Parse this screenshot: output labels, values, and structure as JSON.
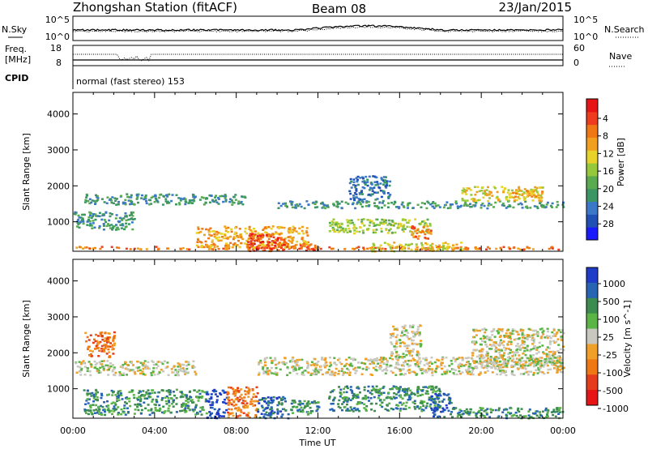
{
  "header": {
    "station": "Zhongshan Station (fitACF)",
    "beam": "Beam 08",
    "date": "23/Jan/2015"
  },
  "params": {
    "nsky_label": "N.Sky",
    "nsearch_label": "N.Search",
    "nsky_ticks": [
      "10^5",
      "10^0"
    ],
    "nsearch_ticks": [
      "10^5",
      "10^0"
    ],
    "freq_label_1": "Freq.",
    "freq_label_2": "[MHz]",
    "freq_ticks": [
      "18",
      "8"
    ],
    "nave_label": "Nave",
    "nave_ticks": [
      "60",
      "0"
    ],
    "cpid_label": "CPID",
    "cpid_text": "normal (fast stereo) 153"
  },
  "chart_data": [
    {
      "type": "heatmap",
      "title": "",
      "xlabel": "Time UT",
      "ylabel": "Slant Range [km]",
      "xticks": [
        "00:00",
        "04:00",
        "08:00",
        "12:00",
        "16:00",
        "20:00",
        "00:00"
      ],
      "yticks": [
        "1000",
        "2000",
        "3000",
        "4000"
      ],
      "ylim": [
        180,
        4600
      ],
      "colorbar": {
        "label": "Power [dB]",
        "ticks": [
          "4",
          "8",
          "12",
          "16",
          "20",
          "24",
          "28"
        ],
        "colors": [
          "#1a1aff",
          "#2050b4",
          "#3c78c8",
          "#3c9664",
          "#5aaa50",
          "#96c83c",
          "#e6d228",
          "#f0a01e",
          "#f07814",
          "#f03c1e",
          "#e61414"
        ]
      },
      "bands": [
        {
          "t0": 0.0,
          "t1": 24.0,
          "r0": 250,
          "r1": 330,
          "level": 8
        },
        {
          "t0": 0.5,
          "t1": 8.5,
          "r0": 1500,
          "r1": 1800,
          "level": 3
        },
        {
          "t0": 6.0,
          "t1": 11.5,
          "r0": 300,
          "r1": 900,
          "level": 7
        },
        {
          "t0": 8.5,
          "t1": 10.5,
          "r0": 200,
          "r1": 700,
          "level": 9
        },
        {
          "t0": 11.0,
          "t1": 12.0,
          "r0": 200,
          "r1": 400,
          "level": 9
        },
        {
          "t0": 10.0,
          "t1": 24.0,
          "r0": 1400,
          "r1": 1600,
          "level": 3
        },
        {
          "t0": 12.5,
          "t1": 17.5,
          "r0": 700,
          "r1": 1100,
          "level": 5
        },
        {
          "t0": 14.5,
          "t1": 19.0,
          "r0": 200,
          "r1": 450,
          "level": 6
        },
        {
          "t0": 16.5,
          "t1": 17.5,
          "r0": 550,
          "r1": 900,
          "level": 8
        },
        {
          "t0": 19.0,
          "t1": 23.0,
          "r0": 1600,
          "r1": 2000,
          "level": 6
        },
        {
          "t0": 21.0,
          "t1": 23.0,
          "r0": 1700,
          "r1": 1900,
          "level": 7
        },
        {
          "t0": 13.5,
          "t1": 15.5,
          "r0": 1600,
          "r1": 2300,
          "level": 2
        },
        {
          "t0": 0.0,
          "t1": 3.0,
          "r0": 800,
          "r1": 1300,
          "level": 3
        }
      ]
    },
    {
      "type": "heatmap",
      "title": "",
      "xlabel": "Time UT",
      "ylabel": "Slant Range [km]",
      "xticks": [
        "00:00",
        "04:00",
        "08:00",
        "12:00",
        "16:00",
        "20:00",
        "00:00"
      ],
      "yticks": [
        "1000",
        "2000",
        "3000",
        "4000"
      ],
      "ylim": [
        180,
        4600
      ],
      "colorbar": {
        "label": "Velocity [m s^-1]",
        "ticks": [
          "1000",
          "500",
          "100",
          "25",
          "-25",
          "-100",
          "-500",
          "-1000"
        ],
        "colors": [
          "#1e3cc8",
          "#2864b4",
          "#3c8c50",
          "#5ab446",
          "#c8c8c0",
          "#f0a028",
          "#f07814",
          "#e63c1e",
          "#e61414"
        ]
      },
      "bands": [
        {
          "t0": 9.0,
          "t1": 24.0,
          "r0": 1400,
          "r1": 1900,
          "level": 4
        },
        {
          "t0": 19.5,
          "t1": 24.0,
          "r0": 1600,
          "r1": 2700,
          "level": 4
        },
        {
          "t0": 0.0,
          "t1": 6.0,
          "r0": 1400,
          "r1": 1800,
          "level": 4
        },
        {
          "t0": 0.5,
          "t1": 6.5,
          "r0": 300,
          "r1": 1000,
          "level": 2
        },
        {
          "t0": 6.5,
          "t1": 7.5,
          "r0": 200,
          "r1": 1000,
          "level": 0
        },
        {
          "t0": 7.5,
          "t1": 9.0,
          "r0": 200,
          "r1": 1100,
          "level": 6
        },
        {
          "t0": 9.0,
          "t1": 10.5,
          "r0": 200,
          "r1": 800,
          "level": 1
        },
        {
          "t0": 10.5,
          "t1": 12.0,
          "r0": 300,
          "r1": 700,
          "level": 2
        },
        {
          "t0": 12.5,
          "t1": 18.0,
          "r0": 400,
          "r1": 1100,
          "level": 2
        },
        {
          "t0": 17.5,
          "t1": 18.5,
          "r0": 200,
          "r1": 900,
          "level": 1
        },
        {
          "t0": 18.5,
          "t1": 24.0,
          "r0": 200,
          "r1": 500,
          "level": 2
        },
        {
          "t0": 0.5,
          "t1": 2.0,
          "r0": 1900,
          "r1": 2600,
          "level": 6
        },
        {
          "t0": 15.5,
          "t1": 17.0,
          "r0": 1900,
          "r1": 2800,
          "level": 4
        }
      ]
    }
  ]
}
